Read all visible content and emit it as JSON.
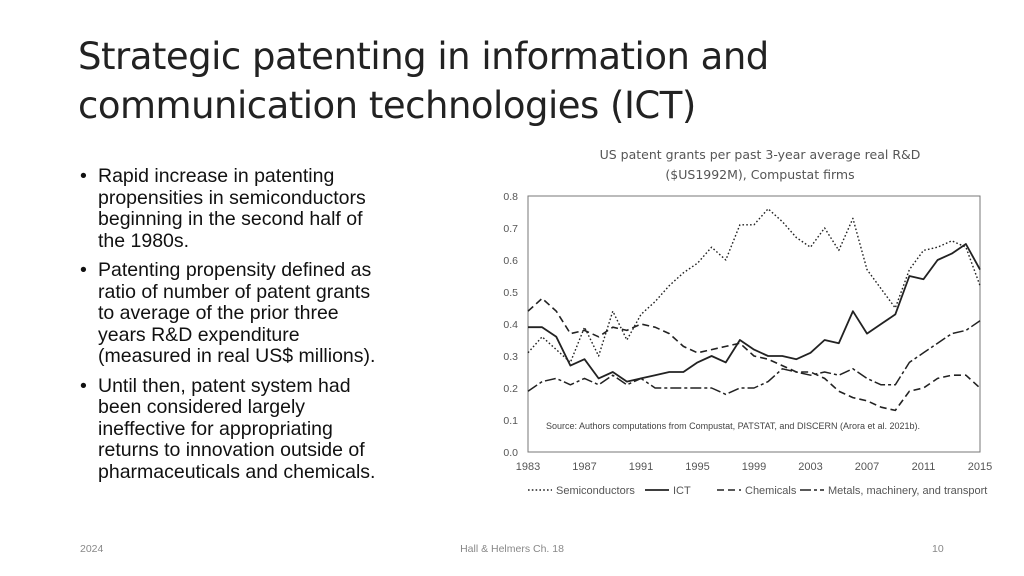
{
  "slide": {
    "title_lines": [
      "Strategic patenting in information and",
      "communication technologies (ICT)"
    ],
    "bullets": [
      [
        "Rapid increase in patenting",
        "propensities in semiconductors",
        "beginning in the second half of",
        "the 1980s."
      ],
      [
        "Patenting propensity defined as",
        "ratio of number of patent grants",
        "to average of the prior three",
        "years R&D expenditure",
        "(measured in real US$ millions)."
      ],
      [
        "Until then, patent system had",
        "been considered largely",
        "ineffective for appropriating",
        "returns to innovation outside of",
        "pharmaceuticals and chemicals."
      ]
    ],
    "bullet_glyph": "•"
  },
  "footer": {
    "year": "2024",
    "source": "Hall & Helmers Ch. 18",
    "page": "10"
  },
  "chart_data": {
    "type": "line",
    "title_lines": [
      "US patent grants per past 3-year average real R&D",
      "($US1992M), Compustat firms"
    ],
    "annotation": "Source: Authors computations from Compustat, PATSTAT, and DISCERN (Arora et al. 2021b).",
    "xlim": [
      1983,
      2015
    ],
    "ylim": [
      0,
      0.8
    ],
    "x_ticks": [
      1983,
      1987,
      1991,
      1995,
      1999,
      2003,
      2007,
      2011,
      2015
    ],
    "y_ticks": [
      "0.0",
      "0.1",
      "0.2",
      "0.3",
      "0.4",
      "0.5",
      "0.6",
      "0.7",
      "0.8"
    ],
    "grid": false,
    "legend_position": "bottom",
    "x": [
      1983,
      1984,
      1985,
      1986,
      1987,
      1988,
      1989,
      1990,
      1991,
      1992,
      1993,
      1994,
      1995,
      1996,
      1997,
      1998,
      1999,
      2000,
      2001,
      2002,
      2003,
      2004,
      2005,
      2006,
      2007,
      2008,
      2009,
      2010,
      2011,
      2012,
      2013,
      2014,
      2015
    ],
    "series": [
      {
        "name": "Semiconductors",
        "dash": "dotted",
        "values": [
          0.31,
          0.36,
          0.32,
          0.28,
          0.39,
          0.3,
          0.44,
          0.35,
          0.43,
          0.47,
          0.52,
          0.56,
          0.59,
          0.64,
          0.6,
          0.71,
          0.71,
          0.76,
          0.72,
          0.67,
          0.64,
          0.7,
          0.63,
          0.73,
          0.57,
          0.51,
          0.45,
          0.57,
          0.63,
          0.64,
          0.66,
          0.64,
          0.52
        ]
      },
      {
        "name": "ICT",
        "dash": "solid",
        "values": [
          0.39,
          0.39,
          0.36,
          0.27,
          0.29,
          0.23,
          0.25,
          0.22,
          0.23,
          0.24,
          0.25,
          0.25,
          0.28,
          0.3,
          0.28,
          0.35,
          0.32,
          0.3,
          0.3,
          0.29,
          0.31,
          0.35,
          0.34,
          0.44,
          0.37,
          0.4,
          0.43,
          0.55,
          0.54,
          0.6,
          0.62,
          0.65,
          0.57
        ]
      },
      {
        "name": "Chemicals",
        "dash": "dashed",
        "values": [
          0.44,
          0.48,
          0.44,
          0.37,
          0.38,
          0.36,
          0.39,
          0.38,
          0.4,
          0.39,
          0.37,
          0.33,
          0.31,
          0.32,
          0.33,
          0.34,
          0.3,
          0.29,
          0.27,
          0.25,
          0.25,
          0.23,
          0.19,
          0.17,
          0.16,
          0.14,
          0.13,
          0.19,
          0.2,
          0.23,
          0.24,
          0.24,
          0.2
        ]
      },
      {
        "name": "Metals, machinery, and transport",
        "dash": "longdash",
        "values": [
          0.19,
          0.22,
          0.23,
          0.21,
          0.23,
          0.21,
          0.24,
          0.21,
          0.23,
          0.2,
          0.2,
          0.2,
          0.2,
          0.2,
          0.18,
          0.2,
          0.2,
          0.22,
          0.26,
          0.25,
          0.24,
          0.25,
          0.24,
          0.26,
          0.23,
          0.21,
          0.21,
          0.28,
          0.31,
          0.34,
          0.37,
          0.38,
          0.41
        ]
      }
    ]
  }
}
